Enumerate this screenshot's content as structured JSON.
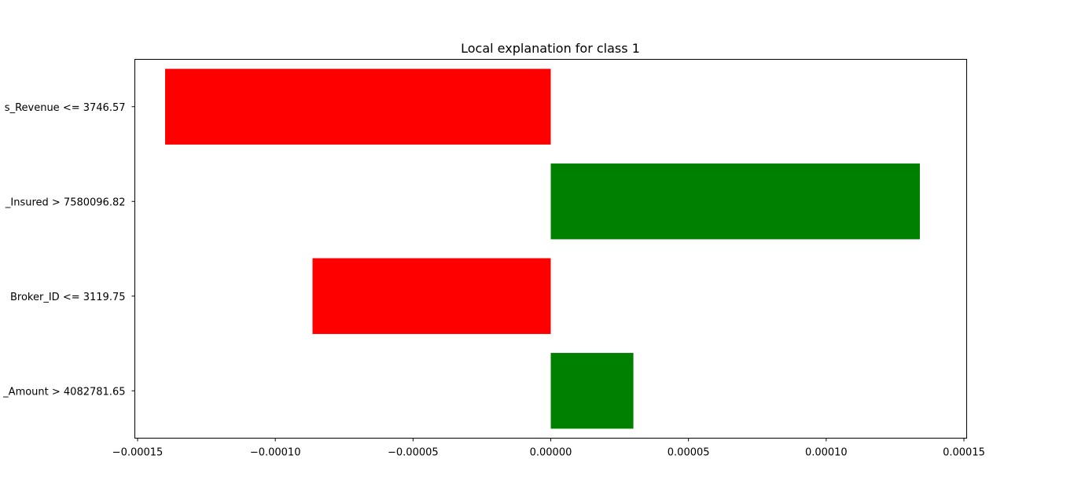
{
  "chart_data": {
    "type": "bar",
    "orientation": "horizontal",
    "title": "Local explanation for class 1",
    "xlabel": "",
    "ylabel": "",
    "categories": [
      "s_Revenue <= 3746.57",
      "_Insured > 7580096.82",
      "Broker_ID <= 3119.75",
      "_Amount > 4082781.65"
    ],
    "values": [
      -0.00014,
      0.000134,
      -8.65e-05,
      3e-05
    ],
    "bar_colors": [
      "#ff0000",
      "#008000",
      "#ff0000",
      "#008000"
    ],
    "xlim": [
      -0.000151,
      0.000151
    ],
    "xticks": [
      -0.00015,
      -0.0001,
      -5e-05,
      0,
      5e-05,
      0.0001,
      0.00015
    ],
    "xtick_labels": [
      "−0.00015",
      "−0.00010",
      "−0.00005",
      "0.00000",
      "0.00005",
      "0.00010",
      "0.00015"
    ],
    "grid": false,
    "legend": "none"
  }
}
